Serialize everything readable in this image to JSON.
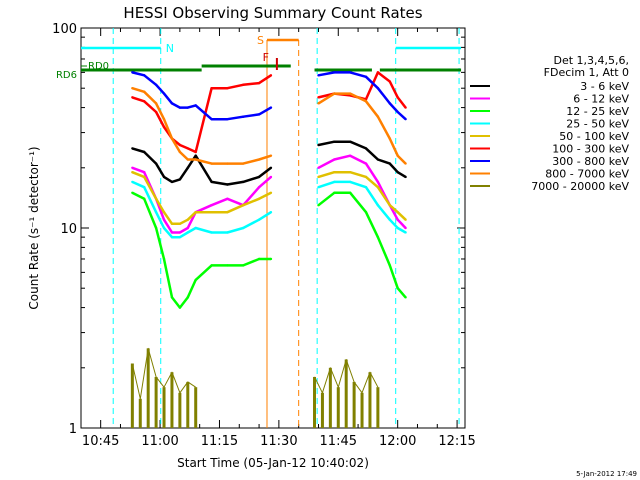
{
  "colors": {
    "background": "#ffffff",
    "axis": "#000000",
    "cyan": "#00ffff",
    "orange": "#ff8000",
    "green_bar": "#008000",
    "red_mark": "#cc0000"
  },
  "chart_data": {
    "type": "line",
    "title": "HESSI Observing Summary Count Rates",
    "xlabel": "Start Time (05-Jan-12 10:40:02)",
    "ylabel": "Count Rate (s⁻¹ detector⁻¹)",
    "yscale": "log",
    "xlim": [
      "10:40:02",
      "12:17:00"
    ],
    "ylim": [
      1,
      100
    ],
    "x_ticks": [
      "10:45",
      "11:00",
      "11:15",
      "11:30",
      "11:45",
      "12:00",
      "12:15"
    ],
    "y_ticks": [
      "1",
      "10",
      "100"
    ],
    "timestamp": "5-Jan-2012 17:49",
    "legend_position": "right",
    "legend_header": [
      "Det 1,3,4,5,6,",
      "FDecim 1, Att 0"
    ],
    "markers": {
      "night_lines": [
        "10:48:10",
        "11:00:10",
        "11:39:40",
        "11:59:30",
        "12:15:30"
      ],
      "saa_lines": [
        "11:27:00",
        "11:35:00"
      ],
      "night_label": "N",
      "saa_label": "S",
      "flare_label": "F",
      "rd0_label": "RD0",
      "rd6_label": "RD6"
    },
    "flag_bars": {
      "cyan": [
        [
          "10:40:02",
          "11:00:10"
        ],
        [
          "11:59:30",
          "12:16:00"
        ]
      ],
      "orange_saa": [
        [
          "11:27:00",
          "11:35:00"
        ]
      ],
      "green_rd6": [
        [
          "10:40:02",
          "11:10:30"
        ],
        [
          "11:10:30",
          "11:33:00"
        ],
        [
          "11:39:00",
          "11:53:30"
        ],
        [
          "11:55:30",
          "12:16:00"
        ]
      ],
      "flare_tick": [
        "11:29:30"
      ]
    },
    "series": [
      {
        "name": "3 - 6 keV",
        "color": "#000000",
        "values": [
          [
            "10:53",
            25
          ],
          [
            "10:56",
            24
          ],
          [
            "10:59",
            21
          ],
          [
            "11:01",
            18
          ],
          [
            "11:03",
            17
          ],
          [
            "11:05",
            17.5
          ],
          [
            "11:07",
            20
          ],
          [
            "11:09",
            23
          ],
          [
            "11:13",
            17
          ],
          [
            "11:17",
            16.5
          ],
          [
            "11:21",
            17
          ],
          [
            "11:25",
            18
          ],
          [
            "11:28",
            20
          ],
          [
            "11:40",
            26
          ],
          [
            "11:44",
            27
          ],
          [
            "11:48",
            27
          ],
          [
            "11:52",
            25
          ],
          [
            "11:55",
            22
          ],
          [
            "11:58",
            21
          ],
          [
            "12:00",
            19
          ],
          [
            "12:02",
            18
          ]
        ]
      },
      {
        "name": "6 - 12 keV",
        "color": "#ff00ff",
        "values": [
          [
            "10:53",
            20
          ],
          [
            "10:56",
            19
          ],
          [
            "10:59",
            14
          ],
          [
            "11:01",
            11
          ],
          [
            "11:03",
            9.5
          ],
          [
            "11:05",
            9.5
          ],
          [
            "11:07",
            10
          ],
          [
            "11:09",
            12
          ],
          [
            "11:13",
            13
          ],
          [
            "11:17",
            14
          ],
          [
            "11:21",
            13
          ],
          [
            "11:25",
            16
          ],
          [
            "11:28",
            18
          ],
          [
            "11:40",
            20
          ],
          [
            "11:44",
            22
          ],
          [
            "11:48",
            23
          ],
          [
            "11:52",
            21
          ],
          [
            "11:55",
            17
          ],
          [
            "11:58",
            13
          ],
          [
            "12:00",
            11
          ],
          [
            "12:02",
            10
          ]
        ]
      },
      {
        "name": "12 - 25 keV",
        "color": "#00ff00",
        "values": [
          [
            "10:53",
            15
          ],
          [
            "10:56",
            14
          ],
          [
            "10:59",
            10
          ],
          [
            "11:01",
            7
          ],
          [
            "11:03",
            4.5
          ],
          [
            "11:05",
            4
          ],
          [
            "11:07",
            4.5
          ],
          [
            "11:09",
            5.5
          ],
          [
            "11:13",
            6.5
          ],
          [
            "11:17",
            6.5
          ],
          [
            "11:21",
            6.5
          ],
          [
            "11:25",
            7
          ],
          [
            "11:28",
            7
          ],
          [
            "11:40",
            13
          ],
          [
            "11:44",
            15
          ],
          [
            "11:48",
            15
          ],
          [
            "11:52",
            12
          ],
          [
            "11:55",
            9
          ],
          [
            "11:58",
            6.5
          ],
          [
            "12:00",
            5
          ],
          [
            "12:02",
            4.5
          ]
        ]
      },
      {
        "name": "25 - 50 keV",
        "color": "#00ffff",
        "values": [
          [
            "10:53",
            17
          ],
          [
            "10:56",
            16
          ],
          [
            "10:59",
            12
          ],
          [
            "11:01",
            10
          ],
          [
            "11:03",
            9
          ],
          [
            "11:05",
            9
          ],
          [
            "11:07",
            9.5
          ],
          [
            "11:09",
            10
          ],
          [
            "11:13",
            9.5
          ],
          [
            "11:17",
            9.5
          ],
          [
            "11:21",
            10
          ],
          [
            "11:25",
            11
          ],
          [
            "11:28",
            12
          ],
          [
            "11:40",
            16
          ],
          [
            "11:44",
            17
          ],
          [
            "11:48",
            17
          ],
          [
            "11:52",
            16
          ],
          [
            "11:55",
            13
          ],
          [
            "11:58",
            11
          ],
          [
            "12:00",
            10
          ],
          [
            "12:02",
            9.5
          ]
        ]
      },
      {
        "name": "50 - 100 keV",
        "color": "#e0c000",
        "values": [
          [
            "10:53",
            19
          ],
          [
            "10:56",
            18
          ],
          [
            "10:59",
            14
          ],
          [
            "11:01",
            12
          ],
          [
            "11:03",
            10.5
          ],
          [
            "11:05",
            10.5
          ],
          [
            "11:07",
            11
          ],
          [
            "11:09",
            12
          ],
          [
            "11:13",
            12
          ],
          [
            "11:17",
            12
          ],
          [
            "11:21",
            13
          ],
          [
            "11:25",
            14
          ],
          [
            "11:28",
            15
          ],
          [
            "11:40",
            18
          ],
          [
            "11:44",
            19
          ],
          [
            "11:48",
            19
          ],
          [
            "11:52",
            18
          ],
          [
            "11:55",
            16
          ],
          [
            "11:58",
            13
          ],
          [
            "12:00",
            12
          ],
          [
            "12:02",
            11
          ]
        ]
      },
      {
        "name": "100 - 300 keV",
        "color": "#ff0000",
        "values": [
          [
            "10:53",
            45
          ],
          [
            "10:56",
            43
          ],
          [
            "10:59",
            38
          ],
          [
            "11:01",
            32
          ],
          [
            "11:03",
            28
          ],
          [
            "11:05",
            26
          ],
          [
            "11:07",
            25
          ],
          [
            "11:09",
            24
          ],
          [
            "11:13",
            50
          ],
          [
            "11:17",
            50
          ],
          [
            "11:21",
            52
          ],
          [
            "11:25",
            53
          ],
          [
            "11:28",
            58
          ],
          [
            "11:40",
            45
          ],
          [
            "11:44",
            47
          ],
          [
            "11:48",
            46
          ],
          [
            "11:52",
            44
          ],
          [
            "11:55",
            60
          ],
          [
            "11:58",
            54
          ],
          [
            "12:00",
            45
          ],
          [
            "12:02",
            40
          ]
        ]
      },
      {
        "name": "300 - 800 keV",
        "color": "#0000ff",
        "values": [
          [
            "10:53",
            60
          ],
          [
            "10:56",
            58
          ],
          [
            "10:59",
            52
          ],
          [
            "11:01",
            47
          ],
          [
            "11:03",
            42
          ],
          [
            "11:05",
            40
          ],
          [
            "11:07",
            40
          ],
          [
            "11:09",
            41
          ],
          [
            "11:13",
            35
          ],
          [
            "11:17",
            35
          ],
          [
            "11:21",
            36
          ],
          [
            "11:25",
            37
          ],
          [
            "11:28",
            40
          ],
          [
            "11:40",
            58
          ],
          [
            "11:44",
            60
          ],
          [
            "11:48",
            60
          ],
          [
            "11:52",
            57
          ],
          [
            "11:55",
            50
          ],
          [
            "11:58",
            42
          ],
          [
            "12:00",
            38
          ],
          [
            "12:02",
            35
          ]
        ]
      },
      {
        "name": "800 - 7000 keV",
        "color": "#ff8000",
        "values": [
          [
            "10:53",
            50
          ],
          [
            "10:56",
            48
          ],
          [
            "10:59",
            42
          ],
          [
            "11:01",
            35
          ],
          [
            "11:03",
            28
          ],
          [
            "11:05",
            24
          ],
          [
            "11:07",
            22
          ],
          [
            "11:09",
            22
          ],
          [
            "11:13",
            21
          ],
          [
            "11:17",
            21
          ],
          [
            "11:21",
            21
          ],
          [
            "11:25",
            22
          ],
          [
            "11:28",
            23
          ],
          [
            "11:40",
            42
          ],
          [
            "11:44",
            47
          ],
          [
            "11:48",
            47
          ],
          [
            "11:52",
            43
          ],
          [
            "11:55",
            36
          ],
          [
            "11:58",
            28
          ],
          [
            "12:00",
            23
          ],
          [
            "12:02",
            21
          ]
        ]
      },
      {
        "name": "7000 - 20000 keV",
        "color": "#808000",
        "values": [
          [
            "10:53",
            2.1
          ],
          [
            "10:55",
            1.4
          ],
          [
            "10:57",
            2.5
          ],
          [
            "10:59",
            1.8
          ],
          [
            "11:01",
            1.6
          ],
          [
            "11:03",
            1.9
          ],
          [
            "11:05",
            1.5
          ],
          [
            "11:07",
            1.7
          ],
          [
            "11:09",
            1.6
          ],
          [
            "11:39",
            1.8
          ],
          [
            "11:41",
            1.5
          ],
          [
            "11:43",
            2.0
          ],
          [
            "11:45",
            1.6
          ],
          [
            "11:47",
            2.2
          ],
          [
            "11:49",
            1.7
          ],
          [
            "11:51",
            1.5
          ],
          [
            "11:53",
            1.9
          ],
          [
            "11:55",
            1.6
          ]
        ]
      }
    ]
  }
}
